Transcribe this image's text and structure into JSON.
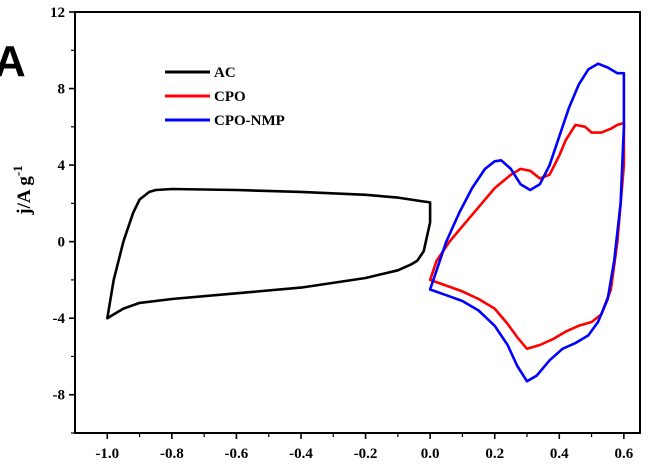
{
  "panel_label": "A",
  "chart_data": {
    "type": "line",
    "title": "",
    "xlabel": "",
    "ylabel": "j/A g",
    "ylabel_sup": "-1",
    "xlim": [
      -1.1,
      0.65
    ],
    "ylim": [
      -10,
      12
    ],
    "xticks": [
      -1.0,
      -0.8,
      -0.6,
      -0.4,
      -0.2,
      0.0,
      0.2,
      0.4,
      0.6
    ],
    "xtick_labels": [
      "-1.0",
      "-0.8",
      "-0.6",
      "-0.4",
      "-0.2",
      "0.0",
      "0.2",
      "0.4",
      "0.6"
    ],
    "yticks": [
      -8,
      -4,
      0,
      4,
      8,
      12
    ],
    "ytick_labels": [
      "-8",
      "-4",
      "0",
      "4",
      "8",
      "12"
    ],
    "grid": false,
    "legend_position": "top-left",
    "series": [
      {
        "name": "AC",
        "color": "#000000",
        "x": [
          -1.0,
          -0.98,
          -0.95,
          -0.92,
          -0.9,
          -0.87,
          -0.85,
          -0.8,
          -0.6,
          -0.4,
          -0.2,
          -0.1,
          -0.02,
          0.0,
          0.0,
          -0.02,
          -0.04,
          -0.06,
          -0.1,
          -0.2,
          -0.4,
          -0.6,
          -0.8,
          -0.9,
          -0.95,
          -0.98,
          -1.0
        ],
        "y": [
          -4.0,
          -2.0,
          0.0,
          1.5,
          2.2,
          2.6,
          2.7,
          2.75,
          2.7,
          2.6,
          2.45,
          2.3,
          2.1,
          2.05,
          1.0,
          -0.5,
          -1.0,
          -1.2,
          -1.5,
          -1.9,
          -2.4,
          -2.7,
          -3.0,
          -3.2,
          -3.5,
          -3.8,
          -4.0
        ]
      },
      {
        "name": "CPO",
        "color": "#ff0000",
        "x": [
          0.0,
          0.02,
          0.06,
          0.1,
          0.15,
          0.2,
          0.25,
          0.28,
          0.31,
          0.34,
          0.37,
          0.4,
          0.42,
          0.45,
          0.48,
          0.5,
          0.53,
          0.56,
          0.58,
          0.6,
          0.6,
          0.58,
          0.56,
          0.53,
          0.5,
          0.46,
          0.42,
          0.38,
          0.34,
          0.3,
          0.27,
          0.24,
          0.2,
          0.15,
          0.1,
          0.05,
          0.0
        ],
        "y": [
          -2.0,
          -1.0,
          0.0,
          0.8,
          1.8,
          2.8,
          3.5,
          3.8,
          3.7,
          3.3,
          3.5,
          4.5,
          5.3,
          6.1,
          6.0,
          5.7,
          5.7,
          5.9,
          6.1,
          6.2,
          4.0,
          0.0,
          -2.5,
          -3.8,
          -4.2,
          -4.4,
          -4.7,
          -5.1,
          -5.4,
          -5.6,
          -5.0,
          -4.3,
          -3.5,
          -3.0,
          -2.6,
          -2.3,
          -2.0
        ]
      },
      {
        "name": "CPO-NMP",
        "color": "#0000ff",
        "x": [
          0.0,
          0.02,
          0.05,
          0.09,
          0.13,
          0.17,
          0.2,
          0.22,
          0.25,
          0.28,
          0.31,
          0.34,
          0.37,
          0.4,
          0.43,
          0.46,
          0.49,
          0.52,
          0.55,
          0.58,
          0.6,
          0.6,
          0.59,
          0.57,
          0.55,
          0.52,
          0.49,
          0.45,
          0.41,
          0.37,
          0.33,
          0.3,
          0.27,
          0.24,
          0.2,
          0.15,
          0.1,
          0.05,
          0.0
        ],
        "y": [
          -2.5,
          -1.5,
          0.0,
          1.5,
          2.8,
          3.8,
          4.2,
          4.25,
          3.8,
          3.0,
          2.7,
          3.0,
          4.0,
          5.5,
          7.0,
          8.2,
          9.0,
          9.3,
          9.1,
          8.8,
          8.8,
          6.0,
          2.0,
          -1.0,
          -3.0,
          -4.2,
          -4.9,
          -5.3,
          -5.6,
          -6.2,
          -7.0,
          -7.3,
          -6.5,
          -5.4,
          -4.4,
          -3.6,
          -3.1,
          -2.8,
          -2.5
        ]
      }
    ]
  }
}
